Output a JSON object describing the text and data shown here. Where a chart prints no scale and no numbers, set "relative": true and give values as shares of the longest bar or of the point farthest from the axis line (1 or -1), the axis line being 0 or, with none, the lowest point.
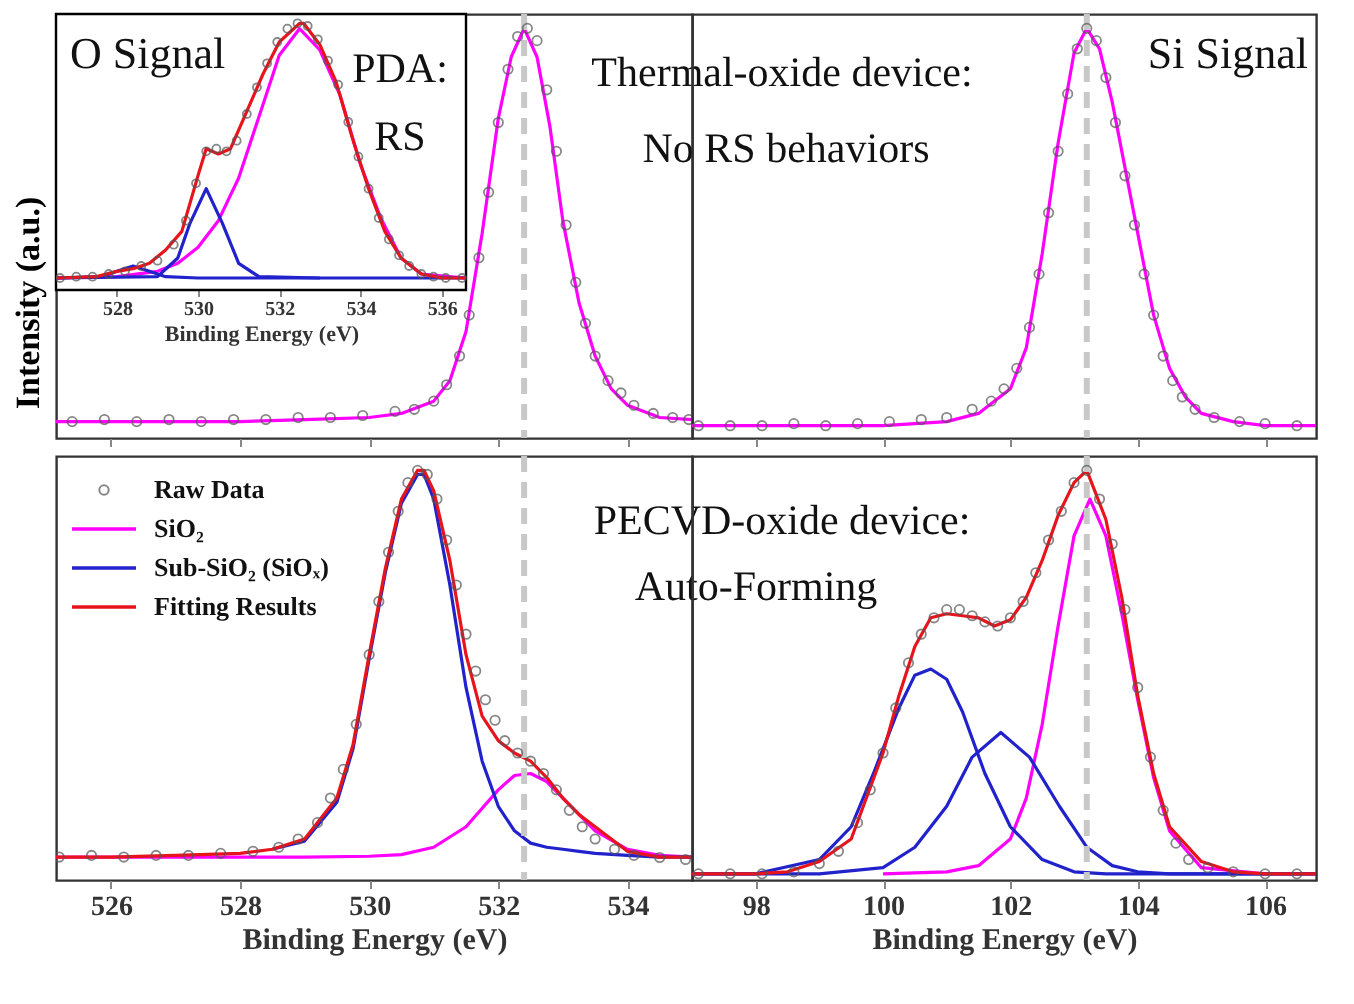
{
  "chart_data": [
    {
      "type": "line",
      "relative": true,
      "ylabel": "Intensity (a.u.)",
      "xlim": [
        525.15,
        535
      ],
      "xticks": [
        526,
        528,
        530,
        532,
        534
      ],
      "tick_labels": false,
      "annotations": [
        "Thermal-oxide device:",
        "No RS behaviors"
      ],
      "ref_lines": [
        {
          "axis": "x",
          "value": 532.4,
          "color": "#c8c8c8",
          "line_style": "dashed"
        }
      ],
      "series": [
        {
          "color": "#ff00ff",
          "x": [
            525.15,
            526,
            527,
            528,
            529,
            530,
            530.5,
            531,
            531.25,
            531.5,
            531.75,
            532,
            532.2,
            532.4,
            532.6,
            532.8,
            533,
            533.25,
            533.5,
            533.75,
            534,
            534.5,
            535
          ],
          "values": [
            0.04,
            0.04,
            0.04,
            0.04,
            0.045,
            0.05,
            0.06,
            0.09,
            0.14,
            0.26,
            0.5,
            0.78,
            0.93,
            1.0,
            0.93,
            0.76,
            0.53,
            0.33,
            0.2,
            0.12,
            0.08,
            0.05,
            0.045
          ]
        },
        {
          "type": "scatter",
          "marker": "circle",
          "color": "#555555",
          "x": [
            525.4,
            525.9,
            526.4,
            526.9,
            527.4,
            527.9,
            528.4,
            528.9,
            529.4,
            529.9,
            530.4,
            530.7,
            531.0,
            531.2,
            531.4,
            531.55,
            531.7,
            531.85,
            532.0,
            532.15,
            532.3,
            532.45,
            532.6,
            532.75,
            532.9,
            533.05,
            533.2,
            533.35,
            533.5,
            533.7,
            533.9,
            534.1,
            534.4,
            534.7,
            534.95
          ],
          "values": [
            0.04,
            0.045,
            0.04,
            0.045,
            0.04,
            0.045,
            0.045,
            0.05,
            0.05,
            0.055,
            0.065,
            0.07,
            0.09,
            0.13,
            0.2,
            0.3,
            0.44,
            0.6,
            0.77,
            0.9,
            0.98,
            1.0,
            0.97,
            0.85,
            0.7,
            0.52,
            0.38,
            0.28,
            0.2,
            0.14,
            0.11,
            0.08,
            0.06,
            0.05,
            0.045
          ]
        }
      ]
    },
    {
      "type": "line",
      "relative": true,
      "title": "O Signal",
      "xlabel": "Binding Energy (eV)",
      "xlim": [
        526.5,
        536.6
      ],
      "xticks": [
        528,
        530,
        532,
        534,
        536
      ],
      "tick_labels": "x",
      "annotations": [
        "PDA:",
        "RS"
      ],
      "series": [
        {
          "type": "scatter",
          "marker": "circle",
          "color": "#555555",
          "x": [
            526.6,
            527.0,
            527.4,
            527.8,
            528.2,
            528.6,
            529.0,
            529.4,
            529.7,
            529.95,
            530.2,
            530.45,
            530.7,
            530.95,
            531.2,
            531.45,
            531.7,
            531.95,
            532.2,
            532.45,
            532.7,
            532.95,
            533.2,
            533.45,
            533.7,
            533.95,
            534.2,
            534.45,
            534.7,
            534.95,
            535.2,
            535.5,
            535.8,
            536.1,
            536.5
          ],
          "values": [
            0.045,
            0.05,
            0.05,
            0.06,
            0.07,
            0.09,
            0.11,
            0.17,
            0.26,
            0.4,
            0.52,
            0.53,
            0.52,
            0.56,
            0.66,
            0.76,
            0.85,
            0.93,
            0.98,
            1.0,
            0.99,
            0.94,
            0.86,
            0.77,
            0.63,
            0.5,
            0.38,
            0.27,
            0.19,
            0.13,
            0.09,
            0.06,
            0.05,
            0.045,
            0.045
          ]
        },
        {
          "color": "#ff00ff",
          "x": [
            526.5,
            528,
            529,
            529.5,
            530,
            530.5,
            531,
            531.5,
            532,
            532.5,
            533,
            533.5,
            534,
            534.5,
            535,
            535.5,
            536.6
          ],
          "values": [
            0.045,
            0.05,
            0.07,
            0.1,
            0.16,
            0.26,
            0.42,
            0.65,
            0.88,
            0.98,
            0.9,
            0.73,
            0.47,
            0.27,
            0.12,
            0.06,
            0.045
          ]
        },
        {
          "color": "#2222cc",
          "x": [
            526.5,
            529,
            529.5,
            529.8,
            530.2,
            530.6,
            531,
            531.5,
            533,
            536.6
          ],
          "values": [
            0.045,
            0.05,
            0.12,
            0.25,
            0.38,
            0.25,
            0.1,
            0.05,
            0.045,
            0.045
          ]
        },
        {
          "color": "#2222cc",
          "x": [
            526.5,
            527.6,
            528,
            528.4,
            528.8,
            529.2,
            530,
            533
          ],
          "values": [
            0.045,
            0.05,
            0.07,
            0.09,
            0.07,
            0.05,
            0.045,
            0.045
          ]
        },
        {
          "color": "#e8141c",
          "x": [
            526.5,
            527.5,
            528,
            528.4,
            528.8,
            529.2,
            529.6,
            530,
            530.2,
            530.5,
            530.8,
            531.2,
            531.6,
            532,
            532.5,
            532.6,
            533,
            533.4,
            533.8,
            534.2,
            534.6,
            535,
            535.5,
            536,
            536.6
          ],
          "values": [
            0.045,
            0.05,
            0.07,
            0.08,
            0.1,
            0.15,
            0.22,
            0.43,
            0.53,
            0.51,
            0.53,
            0.67,
            0.81,
            0.93,
            1.0,
            1.0,
            0.92,
            0.78,
            0.57,
            0.38,
            0.22,
            0.12,
            0.06,
            0.045,
            0.045
          ]
        }
      ]
    },
    {
      "type": "line",
      "relative": true,
      "title": "Si Signal",
      "xlim": [
        97,
        106.8
      ],
      "xticks": [
        98,
        100,
        102,
        104,
        106
      ],
      "tick_labels": false,
      "ref_lines": [
        {
          "axis": "x",
          "value": 103.2,
          "color": "#c8c8c8",
          "line_style": "dashed"
        }
      ],
      "series": [
        {
          "color": "#ff00ff",
          "x": [
            97,
            98,
            99,
            100,
            101,
            101.5,
            102,
            102.25,
            102.5,
            102.75,
            103,
            103.2,
            103.4,
            103.6,
            103.8,
            104,
            104.25,
            104.5,
            104.75,
            105,
            105.5,
            106,
            106.8
          ],
          "values": [
            0.03,
            0.03,
            0.03,
            0.03,
            0.04,
            0.06,
            0.12,
            0.22,
            0.45,
            0.72,
            0.94,
            1.0,
            0.95,
            0.82,
            0.66,
            0.5,
            0.3,
            0.17,
            0.1,
            0.06,
            0.04,
            0.03,
            0.03
          ]
        },
        {
          "type": "scatter",
          "marker": "circle",
          "color": "#555555",
          "x": [
            97.1,
            97.6,
            98.1,
            98.6,
            99.1,
            99.6,
            100.1,
            100.6,
            101.0,
            101.4,
            101.7,
            101.9,
            102.1,
            102.3,
            102.45,
            102.6,
            102.75,
            102.9,
            103.05,
            103.2,
            103.35,
            103.5,
            103.65,
            103.8,
            103.95,
            104.1,
            104.25,
            104.4,
            104.55,
            104.7,
            104.9,
            105.2,
            105.6,
            106.0,
            106.5
          ],
          "values": [
            0.03,
            0.03,
            0.03,
            0.035,
            0.03,
            0.035,
            0.04,
            0.045,
            0.05,
            0.07,
            0.09,
            0.12,
            0.17,
            0.27,
            0.4,
            0.55,
            0.7,
            0.84,
            0.95,
            1.0,
            0.97,
            0.88,
            0.77,
            0.64,
            0.52,
            0.4,
            0.3,
            0.2,
            0.14,
            0.1,
            0.07,
            0.05,
            0.04,
            0.035,
            0.03
          ]
        }
      ]
    },
    {
      "type": "line",
      "relative": true,
      "xlabel": "Binding Energy (eV)",
      "xlim": [
        525.15,
        535
      ],
      "xticks": [
        526,
        528,
        530,
        532,
        534
      ],
      "tick_labels": "x",
      "legend": "top left",
      "annotations": [
        "PECVD-oxide device:",
        "Auto-Forming"
      ],
      "ref_lines": [
        {
          "axis": "x",
          "value": 532.4,
          "color": "#c8c8c8",
          "line_style": "dashed"
        }
      ],
      "series": [
        {
          "name": "Raw Data",
          "type": "scatter",
          "marker": "circle",
          "color": "#555555",
          "x": [
            525.2,
            525.7,
            526.2,
            526.7,
            527.2,
            527.7,
            528.2,
            528.6,
            528.9,
            529.2,
            529.4,
            529.6,
            529.8,
            530.0,
            530.15,
            530.3,
            530.45,
            530.6,
            530.75,
            530.9,
            531.05,
            531.2,
            531.35,
            531.5,
            531.65,
            531.8,
            531.95,
            532.1,
            532.3,
            532.5,
            532.7,
            532.9,
            533.1,
            533.3,
            533.5,
            533.8,
            534.1,
            534.5,
            534.9
          ],
          "values": [
            0.056,
            0.06,
            0.056,
            0.06,
            0.06,
            0.065,
            0.07,
            0.08,
            0.1,
            0.14,
            0.2,
            0.27,
            0.38,
            0.55,
            0.68,
            0.8,
            0.9,
            0.97,
            1.0,
            0.99,
            0.93,
            0.83,
            0.72,
            0.6,
            0.51,
            0.44,
            0.39,
            0.34,
            0.31,
            0.29,
            0.26,
            0.22,
            0.17,
            0.13,
            0.1,
            0.075,
            0.06,
            0.055,
            0.05
          ]
        },
        {
          "name": "SiO₂",
          "color": "#ff00ff",
          "x": [
            525.15,
            527,
            529,
            530,
            530.5,
            531,
            531.5,
            532,
            532.25,
            532.5,
            532.75,
            533,
            533.5,
            534,
            534.5,
            535
          ],
          "values": [
            0.056,
            0.056,
            0.056,
            0.058,
            0.062,
            0.08,
            0.13,
            0.22,
            0.255,
            0.26,
            0.24,
            0.2,
            0.12,
            0.075,
            0.06,
            0.056
          ]
        },
        {
          "name": "Sub-SiO₂ (SiOₓ)",
          "color": "#2222cc",
          "x": [
            528.5,
            529,
            529.5,
            529.75,
            530,
            530.25,
            530.5,
            530.75,
            530.85,
            531,
            531.25,
            531.5,
            531.75,
            532,
            532.25,
            532.5,
            532.75,
            533,
            533.25,
            533.5,
            534,
            534.5,
            535
          ],
          "values": [
            0.075,
            0.095,
            0.19,
            0.32,
            0.54,
            0.75,
            0.92,
            0.99,
            0.99,
            0.93,
            0.72,
            0.47,
            0.29,
            0.18,
            0.12,
            0.09,
            0.08,
            0.075,
            0.07,
            0.065,
            0.06,
            0.056,
            0.056
          ]
        },
        {
          "name": "Fitting Results",
          "color": "#e8141c",
          "x": [
            525.15,
            526,
            527,
            528,
            528.5,
            529,
            529.5,
            529.75,
            530,
            530.25,
            530.5,
            530.75,
            530.85,
            531,
            531.25,
            531.5,
            531.75,
            532,
            532.25,
            532.5,
            532.75,
            533,
            533.25,
            533.5,
            534,
            534.5,
            535
          ],
          "values": [
            0.056,
            0.056,
            0.06,
            0.065,
            0.075,
            0.1,
            0.2,
            0.33,
            0.55,
            0.76,
            0.93,
            1.0,
            1.0,
            0.95,
            0.78,
            0.55,
            0.4,
            0.34,
            0.31,
            0.29,
            0.25,
            0.2,
            0.16,
            0.13,
            0.07,
            0.056,
            0.056
          ]
        }
      ]
    },
    {
      "type": "line",
      "relative": true,
      "xlabel": "Binding Energy (eV)",
      "xlim": [
        97,
        106.8
      ],
      "xticks": [
        98,
        100,
        102,
        104,
        106
      ],
      "tick_labels": "x",
      "ref_lines": [
        {
          "axis": "x",
          "value": 103.2,
          "color": "#c8c8c8",
          "line_style": "dashed"
        }
      ],
      "series": [
        {
          "type": "scatter",
          "marker": "circle",
          "color": "#555555",
          "x": [
            97.1,
            97.6,
            98.1,
            98.6,
            99.0,
            99.3,
            99.6,
            99.8,
            100.0,
            100.2,
            100.4,
            100.6,
            100.8,
            101.0,
            101.2,
            101.4,
            101.6,
            101.8,
            102.0,
            102.2,
            102.4,
            102.6,
            102.8,
            103.0,
            103.2,
            103.4,
            103.6,
            103.8,
            104.0,
            104.2,
            104.4,
            104.6,
            104.8,
            105.1,
            105.5,
            106.0,
            106.5
          ],
          "values": [
            0.015,
            0.015,
            0.015,
            0.02,
            0.04,
            0.07,
            0.14,
            0.22,
            0.31,
            0.42,
            0.53,
            0.6,
            0.64,
            0.66,
            0.66,
            0.645,
            0.63,
            0.62,
            0.64,
            0.68,
            0.75,
            0.83,
            0.9,
            0.97,
            1.0,
            0.93,
            0.82,
            0.66,
            0.47,
            0.3,
            0.17,
            0.09,
            0.05,
            0.03,
            0.02,
            0.015,
            0.015
          ]
        },
        {
          "color": "#ff00ff",
          "x": [
            100,
            101,
            101.5,
            102,
            102.25,
            102.5,
            102.75,
            103,
            103.25,
            103.5,
            103.75,
            104,
            104.25,
            104.5,
            105,
            106
          ],
          "values": [
            0.015,
            0.02,
            0.035,
            0.1,
            0.2,
            0.38,
            0.62,
            0.84,
            0.93,
            0.84,
            0.65,
            0.44,
            0.25,
            0.12,
            0.03,
            0.015
          ]
        },
        {
          "color": "#2222cc",
          "x": [
            97,
            98,
            99,
            99.5,
            99.85,
            100.25,
            100.5,
            100.75,
            101,
            101.25,
            101.6,
            102,
            102.5,
            103,
            103.5,
            104,
            105,
            106.8
          ],
          "values": [
            0.015,
            0.015,
            0.05,
            0.13,
            0.26,
            0.42,
            0.5,
            0.515,
            0.49,
            0.41,
            0.26,
            0.13,
            0.05,
            0.02,
            0.015,
            0.015,
            0.015,
            0.015
          ]
        },
        {
          "color": "#2222cc",
          "x": [
            97,
            99,
            100,
            100.5,
            101,
            101.4,
            101.85,
            102.3,
            102.77,
            103.2,
            103.6,
            104,
            104.5,
            105,
            106.8
          ],
          "values": [
            0.015,
            0.015,
            0.03,
            0.08,
            0.18,
            0.3,
            0.36,
            0.3,
            0.18,
            0.08,
            0.035,
            0.02,
            0.015,
            0.015,
            0.015
          ]
        },
        {
          "color": "#e8141c",
          "x": [
            97,
            98,
            98.5,
            99,
            99.5,
            100,
            100.25,
            100.5,
            100.75,
            101,
            101.25,
            101.5,
            101.75,
            102,
            102.25,
            102.5,
            102.75,
            103,
            103.2,
            103.5,
            103.75,
            104,
            104.25,
            104.5,
            105,
            105.5,
            106,
            106.8
          ],
          "values": [
            0.015,
            0.015,
            0.02,
            0.045,
            0.1,
            0.31,
            0.45,
            0.57,
            0.64,
            0.65,
            0.645,
            0.64,
            0.62,
            0.635,
            0.69,
            0.78,
            0.89,
            0.97,
            1.0,
            0.88,
            0.69,
            0.45,
            0.26,
            0.13,
            0.045,
            0.02,
            0.015,
            0.015
          ]
        }
      ]
    }
  ]
}
